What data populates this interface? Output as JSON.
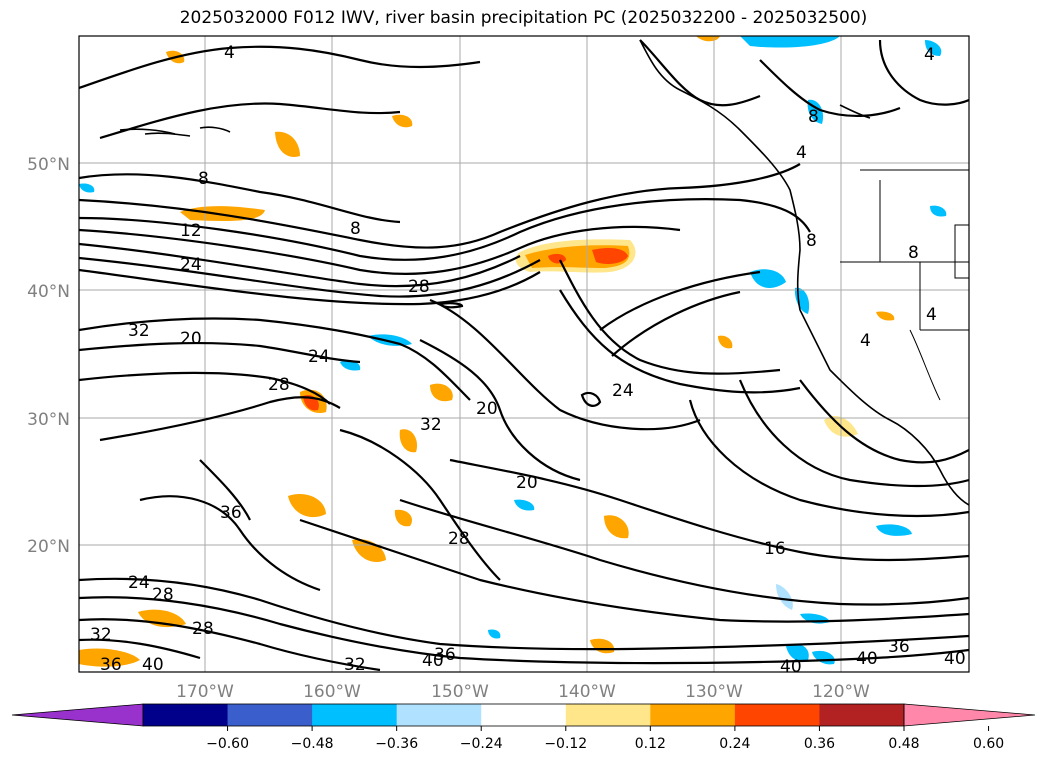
{
  "title": "2025032000 F012 IWV, river basin precipitation PC (2025032200 - 2025032500)",
  "lat_labels": [
    "50°N",
    "40°N",
    "30°N",
    "20°N"
  ],
  "lon_labels": [
    "170°W",
    "160°W",
    "150°W",
    "140°W",
    "130°W",
    "120°W"
  ],
  "colorbar": {
    "colors": [
      "#9932cc",
      "#00008b",
      "#3a5fcd",
      "#00bfff",
      "#b0e2ff",
      "#ffffff",
      "#ffe68a",
      "#ffa500",
      "#ff4500",
      "#b22222",
      "#ff88aa"
    ],
    "tick_labels": [
      "−0.60",
      "−0.48",
      "−0.36",
      "−0.24",
      "−0.12",
      "0.12",
      "0.24",
      "0.36",
      "0.48",
      "0.60"
    ]
  },
  "contour_labels": [
    "4",
    "8",
    "12",
    "24",
    "28",
    "32",
    "20",
    "24",
    "28",
    "20",
    "32",
    "24",
    "36",
    "20",
    "28",
    "16",
    "24",
    "28",
    "32",
    "28",
    "36",
    "40",
    "32",
    "40",
    "36",
    "36",
    "40",
    "40",
    "40",
    "8",
    "8",
    "4",
    "8",
    "4",
    "4",
    "8",
    "4"
  ]
}
